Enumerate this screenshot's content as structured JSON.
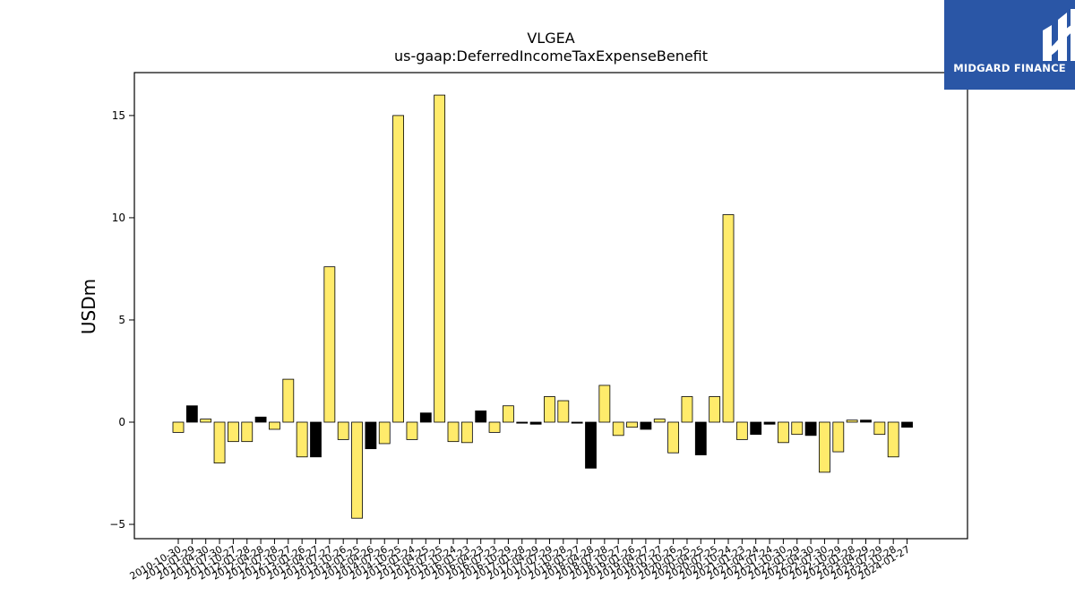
{
  "chart_data": {
    "type": "bar",
    "title": "VLGEA",
    "subtitle": "us-gaap:DeferredIncomeTaxExpenseBenefit",
    "ylabel": "USDm",
    "xlabel": "",
    "ylim": [
      -5.7,
      17.1
    ],
    "yticks": [
      -5,
      0,
      5,
      10,
      15
    ],
    "ytick_labels": [
      "−5",
      "0",
      "5",
      "10",
      "15"
    ],
    "grid": false,
    "legend": "none",
    "categories": [
      "2010-10-30",
      "2011-01-29",
      "2011-04-30",
      "2011-07-30",
      "2011-10-27",
      "2012-01-28",
      "2012-04-28",
      "2012-07-28",
      "2012-10-27",
      "2013-01-26",
      "2013-04-27",
      "2013-07-27",
      "2013-10-26",
      "2014-01-25",
      "2014-04-26",
      "2014-07-26",
      "2014-10-25",
      "2015-01-24",
      "2015-04-25",
      "2015-07-25",
      "2015-10-24",
      "2016-01-23",
      "2016-04-23",
      "2016-07-23",
      "2016-10-29",
      "2017-01-28",
      "2017-04-29",
      "2017-07-29",
      "2017-10-28",
      "2018-01-27",
      "2018-04-28",
      "2018-07-28",
      "2018-10-27",
      "2019-01-26",
      "2019-04-27",
      "2019-07-27",
      "2019-10-26",
      "2020-01-25",
      "2020-04-25",
      "2020-07-25",
      "2020-10-24",
      "2021-01-23",
      "2021-04-24",
      "2021-07-24",
      "2021-10-30",
      "2022-01-29",
      "2022-04-30",
      "2022-07-30",
      "2022-10-29",
      "2023-01-28",
      "2023-04-29",
      "2023-07-29",
      "2023-10-28",
      "2024-01-27"
    ],
    "values": [
      -0.5,
      0.8,
      0.15,
      -2.0,
      -0.95,
      -0.95,
      0.25,
      -0.35,
      2.1,
      -1.7,
      -1.7,
      7.6,
      -0.85,
      -4.7,
      -1.3,
      -1.05,
      15.0,
      -0.85,
      0.45,
      16.0,
      -0.95,
      -1.0,
      0.55,
      -0.5,
      0.8,
      -0.05,
      -0.1,
      1.25,
      1.05,
      -0.05,
      -2.25,
      1.8,
      -0.65,
      -0.25,
      -0.35,
      0.15,
      -1.5,
      1.25,
      -1.6,
      1.25,
      10.15,
      -0.85,
      -0.6,
      -0.1,
      -1.0,
      -0.6,
      -0.65,
      -2.45,
      -1.45,
      0.1,
      0.1,
      -0.6,
      -1.7,
      -0.25
    ],
    "bar_colors": [
      "yellow",
      "black",
      "yellow",
      "yellow",
      "yellow",
      "yellow",
      "black",
      "yellow",
      "yellow",
      "yellow",
      "black",
      "yellow",
      "yellow",
      "yellow",
      "black",
      "yellow",
      "yellow",
      "yellow",
      "black",
      "yellow",
      "yellow",
      "yellow",
      "black",
      "yellow",
      "yellow",
      "black",
      "black",
      "yellow",
      "yellow",
      "black",
      "black",
      "yellow",
      "yellow",
      "yellow",
      "black",
      "yellow",
      "yellow",
      "yellow",
      "black",
      "yellow",
      "yellow",
      "yellow",
      "black",
      "black",
      "yellow",
      "yellow",
      "black",
      "yellow",
      "yellow",
      "yellow",
      "black",
      "yellow",
      "yellow",
      "black"
    ],
    "colors": {
      "yellow": "#ffeb6b",
      "black": "#000000"
    }
  },
  "logo": {
    "text": "MIDGARD FINANCE",
    "background": "#2a56a6",
    "foreground": "#ffffff"
  }
}
